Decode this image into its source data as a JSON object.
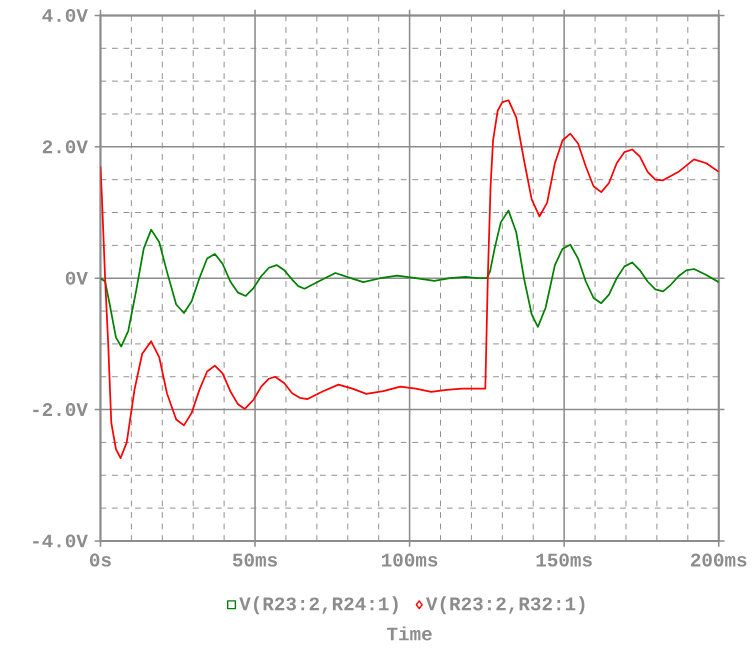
{
  "chart_data": {
    "type": "line",
    "xlabel": "Time",
    "xlim": [
      0,
      200
    ],
    "ylim": [
      -4,
      4
    ],
    "xticks": [
      {
        "value": 0,
        "label": "0s"
      },
      {
        "value": 50,
        "label": "50ms"
      },
      {
        "value": 100,
        "label": "100ms"
      },
      {
        "value": 150,
        "label": "150ms"
      },
      {
        "value": 200,
        "label": "200ms"
      }
    ],
    "yticks": [
      {
        "value": -4,
        "label": "-4.0V"
      },
      {
        "value": -2,
        "label": "-2.0V"
      },
      {
        "value": 0,
        "label": "0V"
      },
      {
        "value": 2,
        "label": "2.0V"
      },
      {
        "value": 4,
        "label": "4.0V"
      }
    ],
    "grid": true,
    "legend": "bottom",
    "series": [
      {
        "name": "V(R23:2,R24:1)",
        "color": "#008000",
        "x": [
          0,
          1.5,
          3,
          5,
          6.7,
          9,
          11.5,
          14,
          16.4,
          19,
          21.5,
          24.5,
          27,
          29.5,
          32,
          34.5,
          37,
          39.5,
          42,
          44.5,
          47,
          49.5,
          52,
          54.5,
          57,
          59.5,
          62,
          64,
          66,
          71,
          76,
          80.5,
          85,
          90.5,
          96,
          102,
          108,
          113,
          118,
          122,
          125,
          126,
          127.5,
          129.5,
          132,
          134.5,
          137,
          139.5,
          141.5,
          144,
          147,
          149.5,
          152,
          154.5,
          157,
          159.5,
          162,
          164.5,
          167,
          169.5,
          172,
          174.5,
          177,
          179.5,
          182,
          184.5,
          187,
          189.5,
          192,
          196,
          200
        ],
        "values": [
          0,
          -0.05,
          -0.4,
          -0.9,
          -1.04,
          -0.8,
          -0.2,
          0.45,
          0.74,
          0.55,
          0.1,
          -0.4,
          -0.53,
          -0.35,
          0,
          0.3,
          0.37,
          0.22,
          -0.05,
          -0.22,
          -0.27,
          -0.15,
          0.03,
          0.16,
          0.2,
          0.12,
          -0.02,
          -0.12,
          -0.16,
          -0.04,
          0.08,
          0.01,
          -0.06,
          0,
          0.04,
          0,
          -0.04,
          0,
          0.02,
          0,
          0,
          0.1,
          0.45,
          0.85,
          1.03,
          0.7,
          0,
          -0.55,
          -0.74,
          -0.45,
          0.2,
          0.45,
          0.51,
          0.3,
          -0.05,
          -0.3,
          -0.38,
          -0.25,
          0,
          0.18,
          0.24,
          0.12,
          -0.05,
          -0.17,
          -0.2,
          -0.1,
          0.03,
          0.12,
          0.14,
          0.05,
          -0.06
        ]
      },
      {
        "name": "V(R23:2,R32:1)",
        "color": "#ff0000",
        "x": [
          0,
          0.5,
          1.5,
          2.5,
          3.5,
          5,
          6.5,
          8.5,
          11,
          13.5,
          16.4,
          19,
          21.5,
          24.5,
          27,
          29.5,
          32,
          34.5,
          37,
          39.5,
          42,
          44.5,
          46.7,
          49.5,
          52,
          54.5,
          56.5,
          59.5,
          62,
          64.5,
          67,
          72,
          77,
          81.5,
          86,
          91.5,
          97,
          102,
          107,
          112,
          117,
          121,
          124.5,
          125.3,
          126.2,
          127,
          128.5,
          130,
          132,
          134.5,
          137,
          139.5,
          142,
          144.5,
          147,
          149.5,
          152,
          154.5,
          157,
          159.5,
          162,
          164.5,
          167,
          169.5,
          172,
          174.5,
          177,
          179.5,
          182,
          187,
          192,
          196,
          200
        ],
        "values": [
          1.7,
          1.2,
          0,
          -1.0,
          -2.2,
          -2.6,
          -2.74,
          -2.5,
          -1.7,
          -1.15,
          -0.96,
          -1.2,
          -1.75,
          -2.15,
          -2.24,
          -2.05,
          -1.7,
          -1.42,
          -1.33,
          -1.45,
          -1.72,
          -1.92,
          -1.99,
          -1.85,
          -1.65,
          -1.53,
          -1.5,
          -1.6,
          -1.75,
          -1.82,
          -1.84,
          -1.72,
          -1.62,
          -1.68,
          -1.76,
          -1.72,
          -1.65,
          -1.68,
          -1.73,
          -1.7,
          -1.68,
          -1.68,
          -1.68,
          0,
          1.4,
          2.1,
          2.55,
          2.68,
          2.71,
          2.45,
          1.8,
          1.2,
          0.94,
          1.15,
          1.75,
          2.1,
          2.2,
          2.05,
          1.7,
          1.4,
          1.31,
          1.45,
          1.75,
          1.92,
          1.96,
          1.85,
          1.62,
          1.5,
          1.49,
          1.62,
          1.81,
          1.75,
          1.62
        ]
      }
    ]
  }
}
